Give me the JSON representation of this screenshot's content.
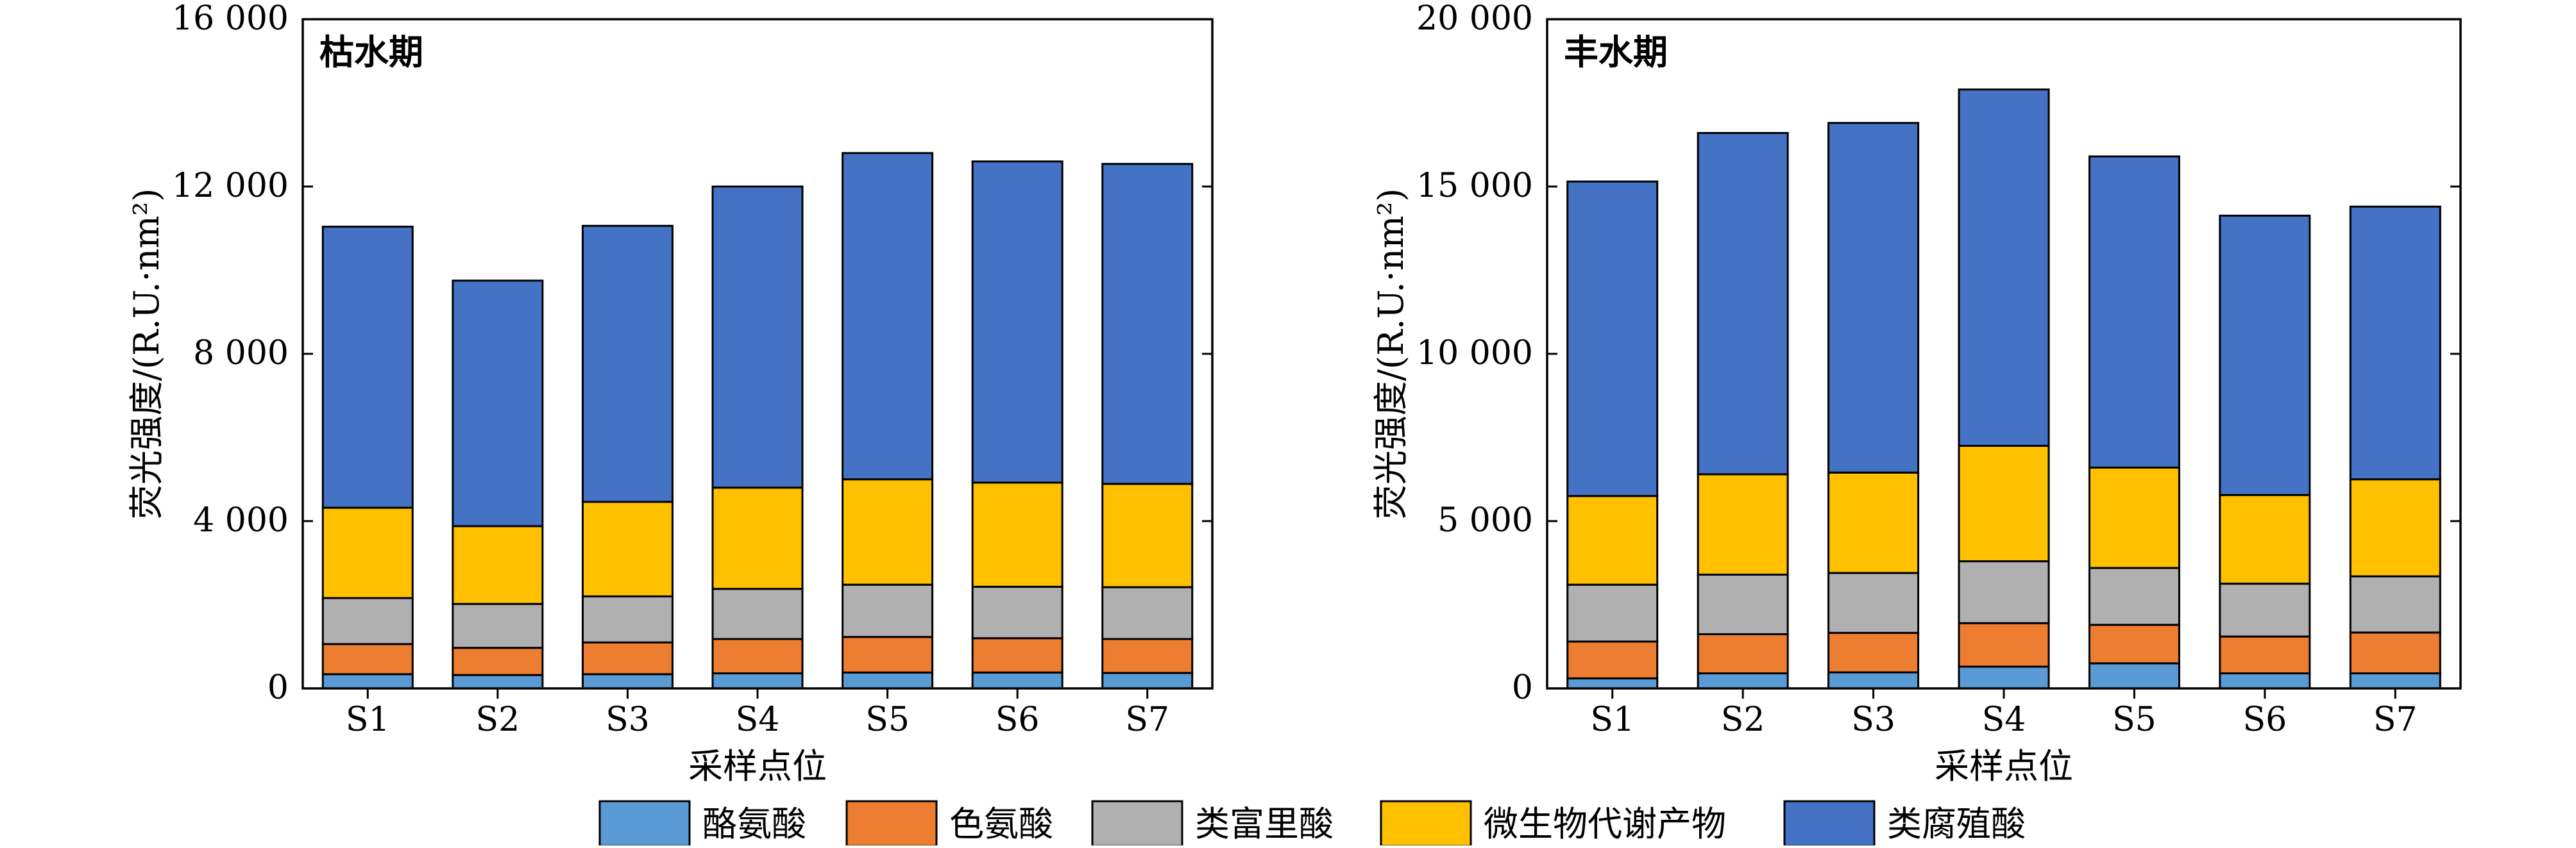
{
  "legend": [
    {
      "key": "tyrosine",
      "label": "酪氨酸",
      "color": "#5b9bd5"
    },
    {
      "key": "tryptophan",
      "label": "色氨酸",
      "color": "#ed7d31"
    },
    {
      "key": "fulvic",
      "label": "类富里酸",
      "color": "#b0b0b0"
    },
    {
      "key": "microbial",
      "label": "微生物代谢产物",
      "color": "#ffc000"
    },
    {
      "key": "humic",
      "label": "类腐殖酸",
      "color": "#4472c4"
    }
  ],
  "chart_data": [
    {
      "type": "bar",
      "stacked": true,
      "title": "枯水期",
      "xlabel": "采样点位",
      "ylabel": "荧光强度/(R.U.·nm²)",
      "ylim": [
        0,
        16000
      ],
      "yticks": [
        0,
        4000,
        8000,
        12000,
        16000
      ],
      "ytick_labels": [
        "0",
        "4 000",
        "8 000",
        "12 000",
        "16 000"
      ],
      "categories": [
        "S1",
        "S2",
        "S3",
        "S4",
        "S5",
        "S6",
        "S7"
      ],
      "series": [
        {
          "name": "酪氨酸",
          "values": [
            340,
            320,
            340,
            360,
            380,
            380,
            370
          ]
        },
        {
          "name": "色氨酸",
          "values": [
            720,
            650,
            760,
            820,
            850,
            820,
            810
          ]
        },
        {
          "name": "类富里酸",
          "values": [
            1100,
            1050,
            1100,
            1200,
            1250,
            1230,
            1240
          ]
        },
        {
          "name": "微生物代谢产物",
          "values": [
            2160,
            1860,
            2260,
            2420,
            2520,
            2490,
            2470
          ]
        },
        {
          "name": "类腐殖酸",
          "values": [
            6720,
            5870,
            6600,
            7200,
            7800,
            7680,
            7650
          ]
        }
      ]
    },
    {
      "type": "bar",
      "stacked": true,
      "title": "丰水期",
      "xlabel": "采样点位",
      "ylabel": "荧光强度/(R.U.·nm²)",
      "ylim": [
        0,
        20000
      ],
      "yticks": [
        0,
        5000,
        10000,
        15000,
        20000
      ],
      "ytick_labels": [
        "0",
        "5 000",
        "10 000",
        "15 000",
        "20 000"
      ],
      "categories": [
        "S1",
        "S2",
        "S3",
        "S4",
        "S5",
        "S6",
        "S7"
      ],
      "series": [
        {
          "name": "酪氨酸",
          "values": [
            300,
            450,
            480,
            650,
            750,
            450,
            450
          ]
        },
        {
          "name": "色氨酸",
          "values": [
            1100,
            1170,
            1180,
            1300,
            1150,
            1100,
            1220
          ]
        },
        {
          "name": "类富里酸",
          "values": [
            1700,
            1780,
            1790,
            1850,
            1700,
            1580,
            1680
          ]
        },
        {
          "name": "微生物代谢产物",
          "values": [
            2650,
            3000,
            3000,
            3450,
            3000,
            2650,
            2900
          ]
        },
        {
          "name": "类腐殖酸",
          "values": [
            9400,
            10200,
            10450,
            10650,
            9300,
            8350,
            8150
          ]
        }
      ]
    }
  ]
}
